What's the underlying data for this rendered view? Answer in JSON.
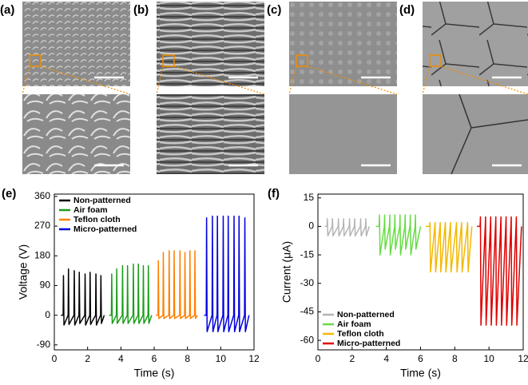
{
  "images": {
    "labels": [
      "(a)",
      "(b)",
      "(c)",
      "(d)"
    ]
  },
  "chart_data": [
    {
      "type": "line",
      "label": "(e)",
      "xlabel": "Time (s)",
      "ylabel": "Voltage (V)",
      "xlim": [
        0,
        12
      ],
      "xticks": [
        0,
        2,
        4,
        6,
        8,
        10,
        12
      ],
      "ylim": [
        -105,
        367
      ],
      "yticks": [
        -90,
        0,
        90,
        180,
        270,
        360
      ],
      "legend": "upper left",
      "series": [
        {
          "name": "Non-patterned",
          "color": "#000000",
          "x": [
            0.4,
            0.53,
            0.55,
            0.58,
            0.83,
            0.85,
            0.88,
            1.18,
            1.2,
            1.23,
            1.48,
            1.5,
            1.53,
            1.83,
            1.85,
            1.88,
            2.13,
            2.15,
            2.18,
            2.48,
            2.5,
            2.53,
            2.78,
            2.8,
            2.83,
            3.0
          ],
          "values": [
            0,
            0,
            120,
            -30,
            0,
            140,
            -28,
            0,
            135,
            -30,
            0,
            130,
            -25,
            0,
            125,
            -30,
            0,
            130,
            -28,
            0,
            125,
            -30,
            0,
            120,
            -25,
            0
          ]
        },
        {
          "name": "Air foam",
          "color": "#1a9e1a",
          "x": [
            3.3,
            3.43,
            3.45,
            3.48,
            3.73,
            3.75,
            3.78,
            4.08,
            4.1,
            4.13,
            4.38,
            4.4,
            4.43,
            4.73,
            4.75,
            4.78,
            5.03,
            5.05,
            5.08,
            5.33,
            5.35,
            5.38,
            5.63,
            5.65,
            5.68,
            5.85
          ],
          "values": [
            0,
            0,
            125,
            -25,
            0,
            140,
            -25,
            0,
            150,
            -25,
            0,
            150,
            -25,
            0,
            155,
            -25,
            0,
            155,
            -25,
            0,
            150,
            -25,
            0,
            150,
            -25,
            0
          ]
        },
        {
          "name": "Teflon cloth",
          "color": "#ff8000",
          "x": [
            6.1,
            6.23,
            6.25,
            6.28,
            6.53,
            6.55,
            6.58,
            6.88,
            6.9,
            6.93,
            7.18,
            7.2,
            7.23,
            7.53,
            7.55,
            7.58,
            7.83,
            7.85,
            7.88,
            8.13,
            8.15,
            8.18,
            8.43,
            8.45,
            8.48,
            8.6
          ],
          "values": [
            0,
            0,
            165,
            -10,
            0,
            190,
            -10,
            0,
            195,
            -10,
            0,
            195,
            -10,
            0,
            195,
            -10,
            0,
            190,
            -10,
            0,
            195,
            -10,
            0,
            195,
            -10,
            0
          ]
        },
        {
          "name": "Micro-patterned",
          "color": "#0000e0",
          "x": [
            9.0,
            9.13,
            9.15,
            9.18,
            9.48,
            9.5,
            9.53,
            9.78,
            9.8,
            9.83,
            10.13,
            10.15,
            10.18,
            10.43,
            10.45,
            10.48,
            10.78,
            10.8,
            10.83,
            11.08,
            11.1,
            11.13,
            11.43,
            11.45,
            11.48,
            11.7
          ],
          "values": [
            0,
            0,
            295,
            -50,
            0,
            300,
            -50,
            0,
            300,
            -50,
            0,
            300,
            -50,
            0,
            300,
            -50,
            0,
            300,
            -50,
            0,
            300,
            -50,
            0,
            295,
            -50,
            0
          ]
        }
      ]
    },
    {
      "type": "line",
      "label": "(f)",
      "xlabel": "Time (s)",
      "ylabel": "Current (μA)",
      "xlim": [
        0,
        12
      ],
      "xticks": [
        0,
        2,
        4,
        6,
        8,
        10,
        12
      ],
      "ylim": [
        -65,
        17
      ],
      "yticks": [
        -60,
        -45,
        -30,
        -15,
        0,
        15
      ],
      "legend": "lower left",
      "series": [
        {
          "name": "Non-patterned",
          "color": "#b4b4b4",
          "x": [
            0.4,
            0.53,
            0.55,
            0.58,
            0.83,
            0.85,
            0.88,
            1.18,
            1.2,
            1.23,
            1.48,
            1.5,
            1.53,
            1.83,
            1.85,
            1.88,
            2.13,
            2.15,
            2.18,
            2.48,
            2.5,
            2.53,
            2.78,
            2.8,
            2.83,
            3.0
          ],
          "values": [
            0,
            0,
            4,
            -5,
            0,
            4,
            -5,
            0,
            4,
            -5,
            0,
            4,
            -5,
            0,
            4,
            -5,
            0,
            4,
            -5,
            0,
            4,
            -5,
            0,
            4,
            -5,
            0
          ]
        },
        {
          "name": "Air foam",
          "color": "#66dd44",
          "x": [
            3.4,
            3.58,
            3.6,
            3.63,
            3.88,
            3.9,
            3.93,
            4.18,
            4.2,
            4.23,
            4.48,
            4.5,
            4.53,
            4.78,
            4.8,
            4.83,
            5.08,
            5.1,
            5.13,
            5.38,
            5.4,
            5.43,
            5.68,
            5.7,
            5.73,
            6.0
          ],
          "values": [
            0,
            0,
            6,
            -15,
            0,
            6,
            -12,
            0,
            6,
            -15,
            0,
            6,
            -12,
            0,
            6,
            -15,
            0,
            6,
            -12,
            0,
            6,
            -15,
            0,
            6,
            -12,
            0
          ]
        },
        {
          "name": "Teflon cloth",
          "color": "#f5b800",
          "x": [
            6.3,
            6.53,
            6.55,
            6.58,
            6.83,
            6.85,
            6.88,
            7.13,
            7.15,
            7.18,
            7.43,
            7.45,
            7.48,
            7.73,
            7.75,
            7.78,
            8.08,
            8.1,
            8.13,
            8.38,
            8.4,
            8.43,
            8.73,
            8.75,
            8.78,
            9.0
          ],
          "values": [
            0,
            0,
            2,
            -24,
            0,
            2,
            -24,
            0,
            2,
            -24,
            0,
            2,
            -24,
            0,
            2,
            -24,
            0,
            2,
            -24,
            0,
            2,
            -24,
            0,
            2,
            -24,
            0
          ]
        },
        {
          "name": "Micro-patterned",
          "color": "#e00000",
          "x": [
            9.3,
            9.48,
            9.5,
            9.53,
            9.78,
            9.8,
            9.83,
            10.08,
            10.1,
            10.13,
            10.38,
            10.4,
            10.43,
            10.68,
            10.7,
            10.73,
            10.98,
            11.0,
            11.03,
            11.28,
            11.3,
            11.33,
            11.58,
            11.6,
            11.63,
            11.9
          ],
          "values": [
            0,
            0,
            5,
            -52,
            0,
            5,
            -52,
            0,
            5,
            -52,
            0,
            5,
            -52,
            0,
            5,
            -52,
            0,
            5,
            -52,
            0,
            5,
            -52,
            0,
            5,
            -52,
            0
          ]
        }
      ]
    }
  ]
}
